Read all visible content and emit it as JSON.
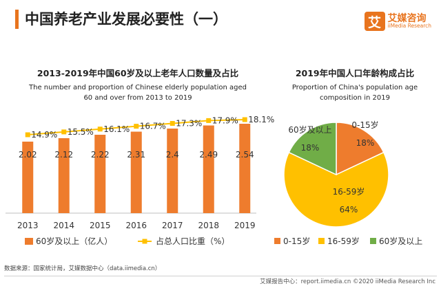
{
  "header": {
    "title": "中国养老产业发展必要性（一）",
    "logo_mark": "艾",
    "logo_cn": "艾媒咨询",
    "logo_en": "iiMedia Research"
  },
  "colors": {
    "accent": "#e8741e",
    "bar": "#ee7c2d",
    "line": "#ffc000",
    "pie_mid": "#ffc000",
    "pie_old": "#70ad47"
  },
  "left_chart": {
    "title": "2013-2019年中国60岁及以上老年人口数量及占比",
    "subtitle_line1": "The number and proportion of  Chinese elderly population aged",
    "subtitle_line2": "60 and over from 2013 to 2019"
  },
  "right_chart": {
    "title": "2019年中国人口年龄构成占比",
    "subtitle_line1": "Proportion of China's population age",
    "subtitle_line2": "composition in 2019"
  },
  "chart_data": [
    {
      "type": "bar",
      "title": "2013-2019年中国60岁及以上老年人口数量及占比",
      "categories": [
        "2013",
        "2014",
        "2015",
        "2016",
        "2017",
        "2018",
        "2019"
      ],
      "series": [
        {
          "name": "60岁及以上（亿人）",
          "kind": "bar",
          "values": [
            2.02,
            2.12,
            2.22,
            2.31,
            2.4,
            2.49,
            2.54
          ],
          "labels": [
            "2.02",
            "2.12",
            "2.22",
            "2.31",
            "2.4",
            "2.49",
            "2.54"
          ]
        },
        {
          "name": "占总人口比重（%）",
          "kind": "line",
          "values": [
            14.9,
            15.5,
            16.1,
            16.7,
            17.3,
            17.9,
            18.1
          ],
          "labels": [
            "14.9%",
            "15.5%",
            "16.1%",
            "16.7%",
            "17.3%",
            "17.9%",
            "18.1%"
          ]
        }
      ],
      "legend": "bottom"
    },
    {
      "type": "pie",
      "title": "2019年中国人口年龄构成占比",
      "slices": [
        {
          "name": "0-15岁",
          "value": 18,
          "label": "0-15岁",
          "pct": "18%"
        },
        {
          "name": "16-59岁",
          "value": 64,
          "label": "16-59岁",
          "pct": "64%"
        },
        {
          "name": "60岁及以上",
          "value": 18,
          "label": "60岁及以上",
          "pct": "18%"
        }
      ],
      "legend": "bottom"
    }
  ],
  "footer": {
    "source": "数据来源：国家统计局，艾媒数据中心（data.iimedia.cn）",
    "copyright": "艾媒报告中心：report.iimedia.cn  ©2020  iiMedia Research  Inc"
  }
}
